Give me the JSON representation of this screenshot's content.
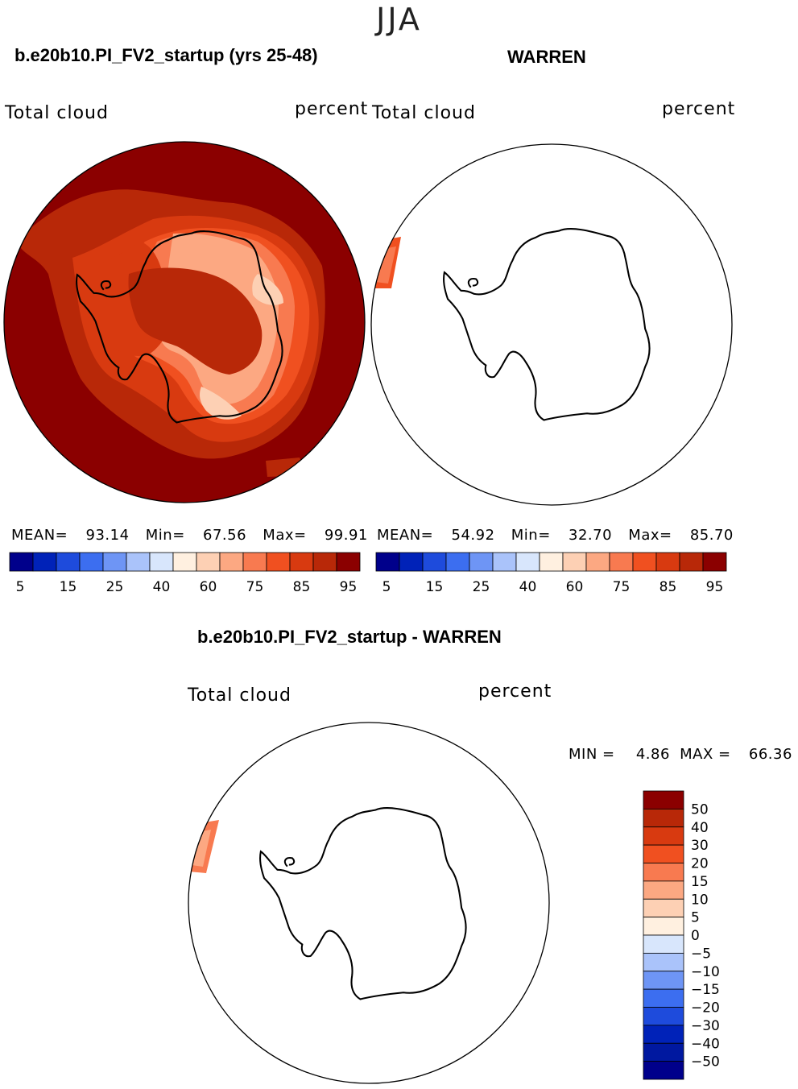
{
  "season": "JJA",
  "left_panel": {
    "title": "b.e20b10.PI_FV2_startup (yrs 25-48)",
    "var_label": "Total cloud",
    "units": "percent",
    "mean_label": "MEAN=",
    "mean_value": "93.14",
    "min_label": "Min=",
    "min_value": "67.56",
    "max_label": "Max=",
    "max_value": "99.91"
  },
  "right_panel": {
    "title": "WARREN",
    "var_label": "Total cloud",
    "units": "percent",
    "mean_label": "MEAN=",
    "mean_value": "54.92",
    "min_label": "Min=",
    "min_value": "32.70",
    "max_label": "Max=",
    "max_value": "85.70"
  },
  "horizontal_colorbar": {
    "colors": [
      "#00008b",
      "#0022b8",
      "#1e4bdc",
      "#3c6ef0",
      "#6e95f5",
      "#aac3fa",
      "#d8e6fc",
      "#fff0e0",
      "#fdd0b4",
      "#fca882",
      "#f87a50",
      "#f05020",
      "#d83a10",
      "#b82808",
      "#8b0000"
    ],
    "tick_labels": [
      "5",
      "15",
      "25",
      "40",
      "60",
      "75",
      "85",
      "95"
    ]
  },
  "diff_panel": {
    "title": "b.e20b10.PI_FV2_startup - WARREN",
    "var_label": "Total cloud",
    "units": "percent",
    "min_label": "MIN =",
    "min_value": "4.86",
    "max_label": "MAX =",
    "max_value": "66.36"
  },
  "vertical_colorbar": {
    "colors": [
      "#8b0000",
      "#b82808",
      "#d83a10",
      "#f05020",
      "#f87a50",
      "#fca882",
      "#fdd0b4",
      "#fff0e0",
      "#d8e6fc",
      "#aac3fa",
      "#6e95f5",
      "#3c6ef0",
      "#1e4bdc",
      "#0022b8",
      "#0018a0",
      "#00008b"
    ],
    "tick_labels": [
      "50",
      "40",
      "30",
      "20",
      "15",
      "10",
      "5",
      "0",
      "−5",
      "−10",
      "−15",
      "−20",
      "−30",
      "−40",
      "−50"
    ]
  },
  "chart_data": [
    {
      "type": "heatmap",
      "title": "b.e20b10.PI_FV2_startup (yrs 25-48)",
      "projection": "south-polar-stereographic",
      "variable": "Total cloud",
      "units": "percent",
      "mean": 93.14,
      "min": 67.56,
      "max": 99.91,
      "contour_levels": [
        5,
        10,
        15,
        20,
        25,
        30,
        40,
        50,
        60,
        65,
        70,
        75,
        80,
        85,
        90,
        95
      ]
    },
    {
      "type": "heatmap",
      "title": "WARREN",
      "projection": "south-polar-stereographic",
      "variable": "Total cloud",
      "units": "percent",
      "mean": 54.92,
      "min": 32.7,
      "max": 85.7,
      "contour_levels": [
        5,
        10,
        15,
        20,
        25,
        30,
        40,
        50,
        60,
        65,
        70,
        75,
        80,
        85,
        90,
        95
      ]
    },
    {
      "type": "heatmap",
      "title": "b.e20b10.PI_FV2_startup - WARREN",
      "projection": "south-polar-stereographic",
      "variable": "Total cloud",
      "units": "percent",
      "min": 4.86,
      "max": 66.36,
      "contour_levels": [
        -50,
        -40,
        -30,
        -20,
        -15,
        -10,
        -5,
        0,
        5,
        10,
        15,
        20,
        30,
        40,
        50
      ]
    }
  ]
}
